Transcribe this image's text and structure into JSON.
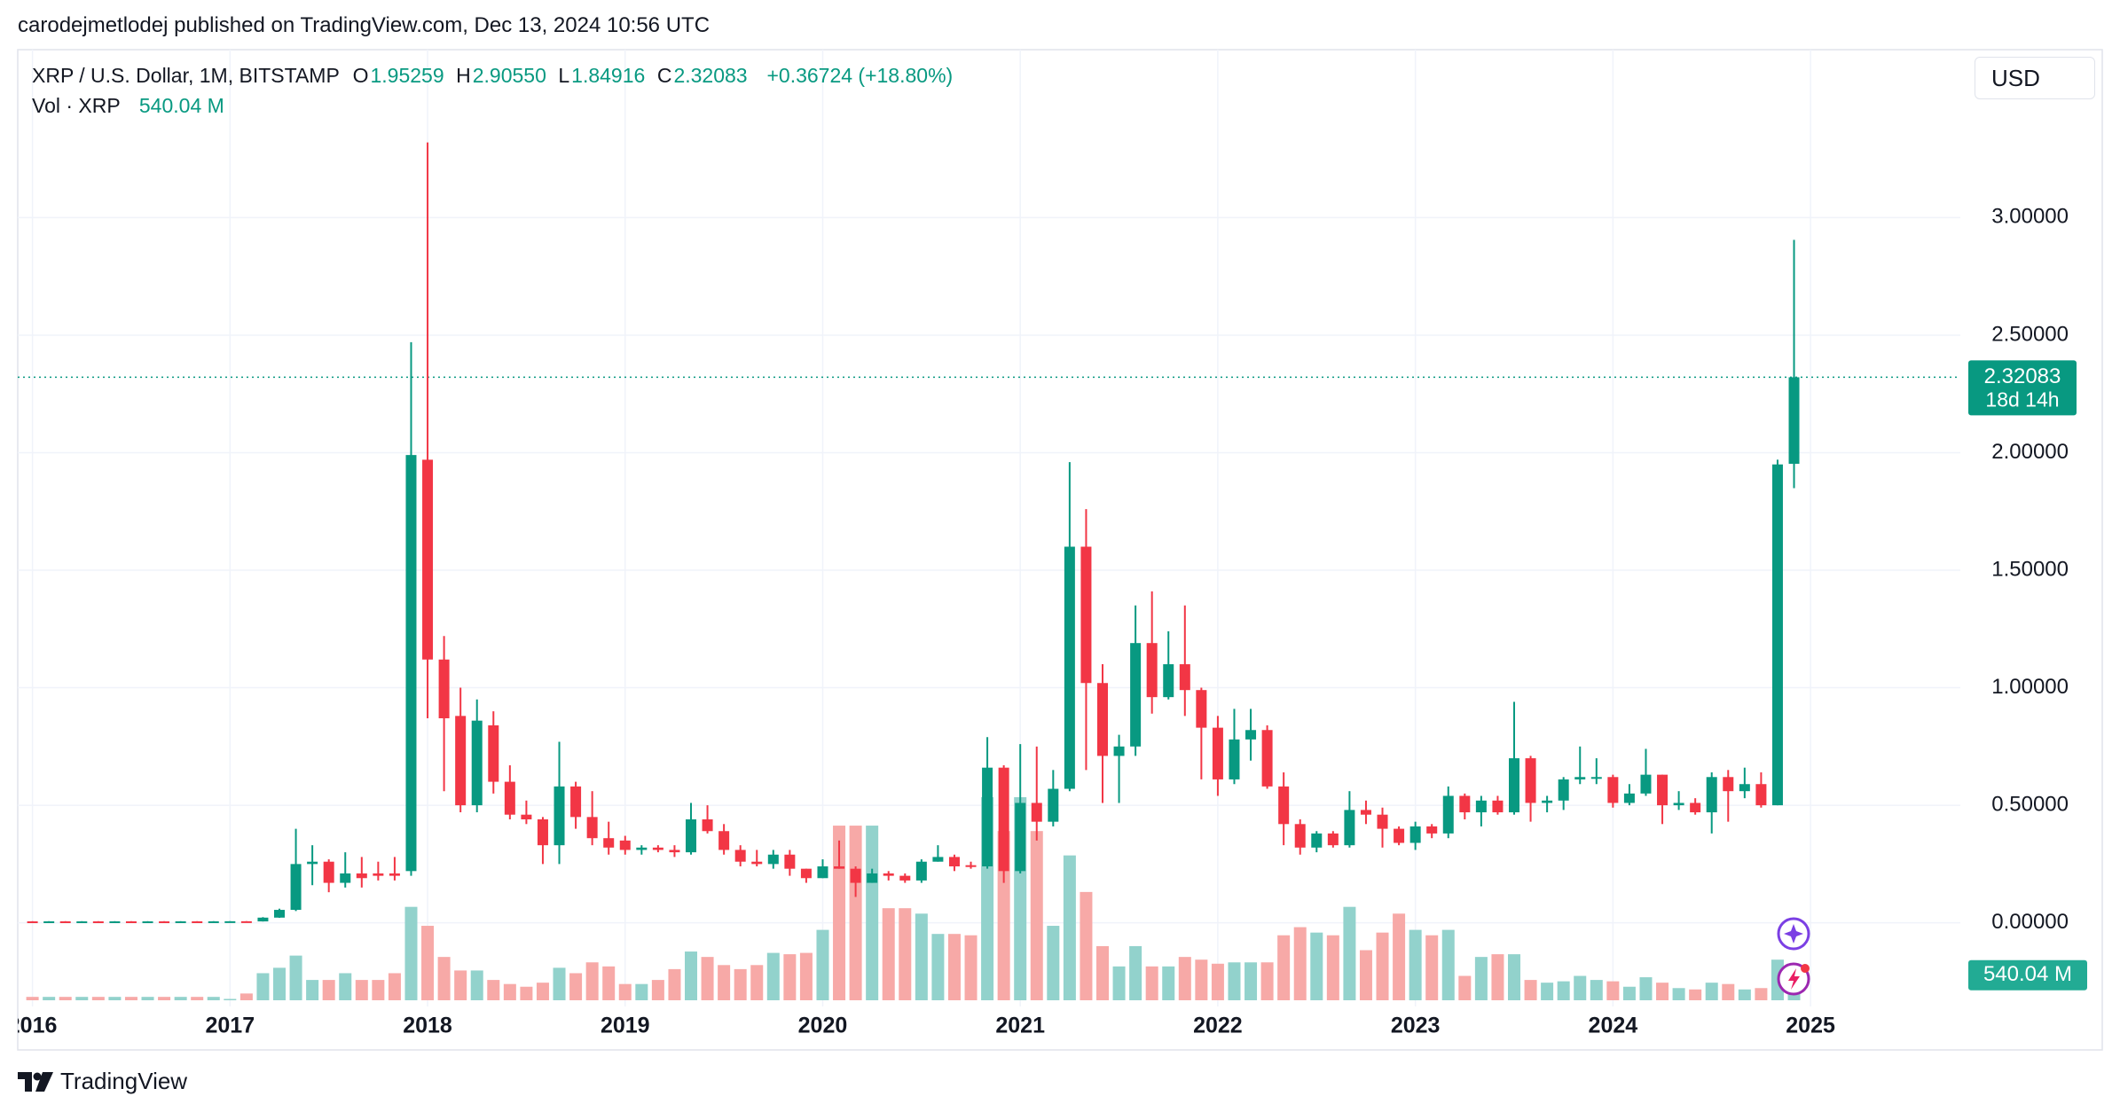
{
  "author_line": "carodejmetlodej published on TradingView.com, Dec 13, 2024 10:56 UTC",
  "brand": "TradingView",
  "chart_data": {
    "type": "candlestick",
    "title": "XRP / U.S. Dollar, 1M, BITSTAMP",
    "ohlc_legend": [
      {
        "key": "O",
        "value": "1.95259"
      },
      {
        "key": "H",
        "value": "2.90550"
      },
      {
        "key": "L",
        "value": "1.84916"
      },
      {
        "key": "C",
        "value": "2.32083"
      }
    ],
    "change": "+0.36724 (+18.80%)",
    "volume_title": "Vol · XRP",
    "volume_last": "540.04 M",
    "currency": "USD",
    "countdown": "18d 14h",
    "up_color": "#089981",
    "down_color": "#f23645",
    "volume_up_color": "#92d2cc",
    "volume_down_color": "#f7a9a7",
    "grid": true,
    "ylim": [
      -0.356,
      3.713
    ],
    "yticks": [
      {
        "value": 0,
        "label": "0.00000"
      },
      {
        "value": 0.5,
        "label": "0.50000"
      },
      {
        "value": 1,
        "label": "1.00000"
      },
      {
        "value": 1.5,
        "label": "1.50000"
      },
      {
        "value": 2,
        "label": "2.00000"
      },
      {
        "value": 2.5,
        "label": "2.50000"
      },
      {
        "value": 3,
        "label": "3.00000"
      }
    ],
    "categories": [
      "2016",
      null,
      null,
      null,
      null,
      null,
      null,
      null,
      null,
      null,
      null,
      null,
      "2017",
      null,
      null,
      null,
      null,
      null,
      null,
      null,
      null,
      null,
      null,
      null,
      "2018",
      null,
      null,
      null,
      null,
      null,
      null,
      null,
      null,
      null,
      null,
      null,
      "2019",
      null,
      null,
      null,
      null,
      null,
      null,
      null,
      null,
      null,
      null,
      null,
      "2020",
      null,
      null,
      null,
      null,
      null,
      null,
      null,
      null,
      null,
      null,
      null,
      "2021",
      null,
      null,
      null,
      null,
      null,
      null,
      null,
      null,
      null,
      null,
      null,
      "2022",
      null,
      null,
      null,
      null,
      null,
      null,
      null,
      null,
      null,
      null,
      null,
      "2023",
      null,
      null,
      null,
      null,
      null,
      null,
      null,
      null,
      null,
      null,
      null,
      "2024",
      null,
      null,
      null,
      null,
      null,
      null,
      null,
      null,
      null,
      null,
      null,
      "2025"
    ],
    "open": [
      0.0061,
      0.006,
      0.0062,
      0.0059,
      0.0061,
      0.006,
      0.0062,
      0.0059,
      0.0061,
      0.006,
      0.0062,
      0.0059,
      0.0063,
      0.0066,
      0.0059,
      0.022,
      0.055,
      0.25,
      0.26,
      0.17,
      0.21,
      0.21,
      0.21,
      0.22,
      1.97,
      1.12,
      0.88,
      0.5,
      0.84,
      0.6,
      0.46,
      0.44,
      0.33,
      0.58,
      0.45,
      0.36,
      0.35,
      0.31,
      0.32,
      0.31,
      0.3,
      0.44,
      0.39,
      0.31,
      0.26,
      0.25,
      0.29,
      0.23,
      0.19,
      0.24,
      0.23,
      0.17,
      0.21,
      0.2,
      0.18,
      0.26,
      0.28,
      0.245,
      0.24,
      0.66,
      0.22,
      0.51,
      0.43,
      0.57,
      1.6,
      1.02,
      0.71,
      0.75,
      1.19,
      0.96,
      1.1,
      0.99,
      0.83,
      0.61,
      0.78,
      0.82,
      0.58,
      0.42,
      0.32,
      0.38,
      0.33,
      0.48,
      0.46,
      0.4,
      0.34,
      0.41,
      0.38,
      0.54,
      0.47,
      0.52,
      0.47,
      0.7,
      0.51,
      0.52,
      0.61,
      0.615,
      0.62,
      0.51,
      0.55,
      0.63,
      0.5,
      0.51,
      0.47,
      0.62,
      0.56,
      0.59,
      0.5,
      1.95259,
      null
    ],
    "high": [
      0.007,
      0.007,
      0.007,
      0.007,
      0.007,
      0.007,
      0.007,
      0.007,
      0.007,
      0.007,
      0.007,
      0.007,
      0.007,
      0.007,
      0.024,
      0.06,
      0.4,
      0.33,
      0.27,
      0.3,
      0.28,
      0.26,
      0.28,
      2.47,
      3.32,
      1.22,
      1,
      0.95,
      0.9,
      0.67,
      0.52,
      0.45,
      0.77,
      0.6,
      0.56,
      0.43,
      0.37,
      0.33,
      0.33,
      0.33,
      0.51,
      0.5,
      0.42,
      0.33,
      0.31,
      0.31,
      0.31,
      0.23,
      0.27,
      0.35,
      0.24,
      0.23,
      0.22,
      0.21,
      0.27,
      0.33,
      0.29,
      0.26,
      0.79,
      0.67,
      0.76,
      0.75,
      0.65,
      1.96,
      1.76,
      1.1,
      0.8,
      1.35,
      1.41,
      1.24,
      1.35,
      1,
      0.88,
      0.91,
      0.91,
      0.84,
      0.64,
      0.44,
      0.39,
      0.39,
      0.56,
      0.52,
      0.49,
      0.41,
      0.43,
      0.42,
      0.58,
      0.55,
      0.54,
      0.54,
      0.94,
      0.71,
      0.54,
      0.62,
      0.75,
      0.7,
      0.63,
      0.59,
      0.74,
      0.63,
      0.56,
      0.53,
      0.64,
      0.65,
      0.66,
      0.64,
      1.97,
      2.9055,
      null
    ],
    "low": [
      0.0052,
      0.0052,
      0.0052,
      0.0052,
      0.0052,
      0.0052,
      0.0052,
      0.0052,
      0.0052,
      0.0052,
      0.0052,
      0.0052,
      0.0058,
      0.0057,
      0.0055,
      0.021,
      0.05,
      0.16,
      0.13,
      0.15,
      0.15,
      0.18,
      0.18,
      0.2,
      0.87,
      0.56,
      0.47,
      0.47,
      0.55,
      0.44,
      0.42,
      0.25,
      0.25,
      0.4,
      0.33,
      0.29,
      0.29,
      0.29,
      0.3,
      0.28,
      0.29,
      0.38,
      0.29,
      0.24,
      0.24,
      0.23,
      0.2,
      0.17,
      0.19,
      0.23,
      0.11,
      0.17,
      0.18,
      0.17,
      0.17,
      0.26,
      0.22,
      0.23,
      0.23,
      0.17,
      0.21,
      0.35,
      0.41,
      0.56,
      0.65,
      0.51,
      0.51,
      0.71,
      0.89,
      0.95,
      0.88,
      0.61,
      0.54,
      0.59,
      0.69,
      0.57,
      0.33,
      0.29,
      0.3,
      0.32,
      0.32,
      0.42,
      0.32,
      0.33,
      0.31,
      0.36,
      0.36,
      0.44,
      0.41,
      0.46,
      0.46,
      0.43,
      0.47,
      0.48,
      0.59,
      0.59,
      0.49,
      0.5,
      0.54,
      0.42,
      0.48,
      0.46,
      0.38,
      0.43,
      0.53,
      0.49,
      0.5,
      1.84916,
      null
    ],
    "close": [
      0.006,
      0.0062,
      0.0059,
      0.0061,
      0.006,
      0.0062,
      0.0059,
      0.0061,
      0.006,
      0.0062,
      0.0059,
      0.0063,
      0.0066,
      0.0059,
      0.022,
      0.055,
      0.25,
      0.26,
      0.17,
      0.21,
      0.19,
      0.2,
      0.2,
      1.99,
      1.12,
      0.87,
      0.5,
      0.86,
      0.6,
      0.46,
      0.44,
      0.33,
      0.58,
      0.45,
      0.36,
      0.32,
      0.31,
      0.32,
      0.31,
      0.3,
      0.44,
      0.39,
      0.31,
      0.26,
      0.25,
      0.29,
      0.23,
      0.19,
      0.24,
      0.23,
      0.17,
      0.21,
      0.2,
      0.18,
      0.26,
      0.28,
      0.24,
      0.24,
      0.66,
      0.22,
      0.51,
      0.43,
      0.57,
      1.6,
      1.02,
      0.71,
      0.75,
      1.19,
      0.96,
      1.1,
      0.99,
      0.83,
      0.61,
      0.78,
      0.82,
      0.58,
      0.42,
      0.32,
      0.38,
      0.33,
      0.48,
      0.46,
      0.4,
      0.34,
      0.41,
      0.38,
      0.54,
      0.47,
      0.52,
      0.47,
      0.7,
      0.51,
      0.52,
      0.61,
      0.62,
      0.62,
      0.51,
      0.55,
      0.63,
      0.5,
      0.51,
      0.47,
      0.62,
      0.56,
      0.59,
      0.5,
      1.95,
      2.32083,
      null
    ],
    "volume": [
      50,
      50,
      50,
      50,
      50,
      50,
      50,
      50,
      50,
      50,
      50,
      50,
      20,
      100,
      400,
      480,
      660,
      300,
      300,
      400,
      300,
      300,
      400,
      1380,
      1100,
      640,
      440,
      440,
      300,
      240,
      200,
      260,
      480,
      400,
      560,
      500,
      240,
      240,
      300,
      460,
      720,
      640,
      520,
      460,
      520,
      700,
      680,
      700,
      1040,
      2580,
      2580,
      2580,
      1360,
      1360,
      1280,
      980,
      980,
      960,
      3000,
      2500,
      3000,
      2500,
      1100,
      2140,
      1600,
      800,
      500,
      800,
      500,
      500,
      640,
      600,
      540,
      560,
      560,
      560,
      960,
      1080,
      1000,
      960,
      1380,
      740,
      1000,
      1280,
      1040,
      960,
      1040,
      360,
      640,
      680,
      680,
      300,
      260,
      280,
      360,
      300,
      280,
      200,
      340,
      260,
      180,
      160,
      260,
      240,
      160,
      180,
      600,
      540.04,
      null
    ]
  }
}
